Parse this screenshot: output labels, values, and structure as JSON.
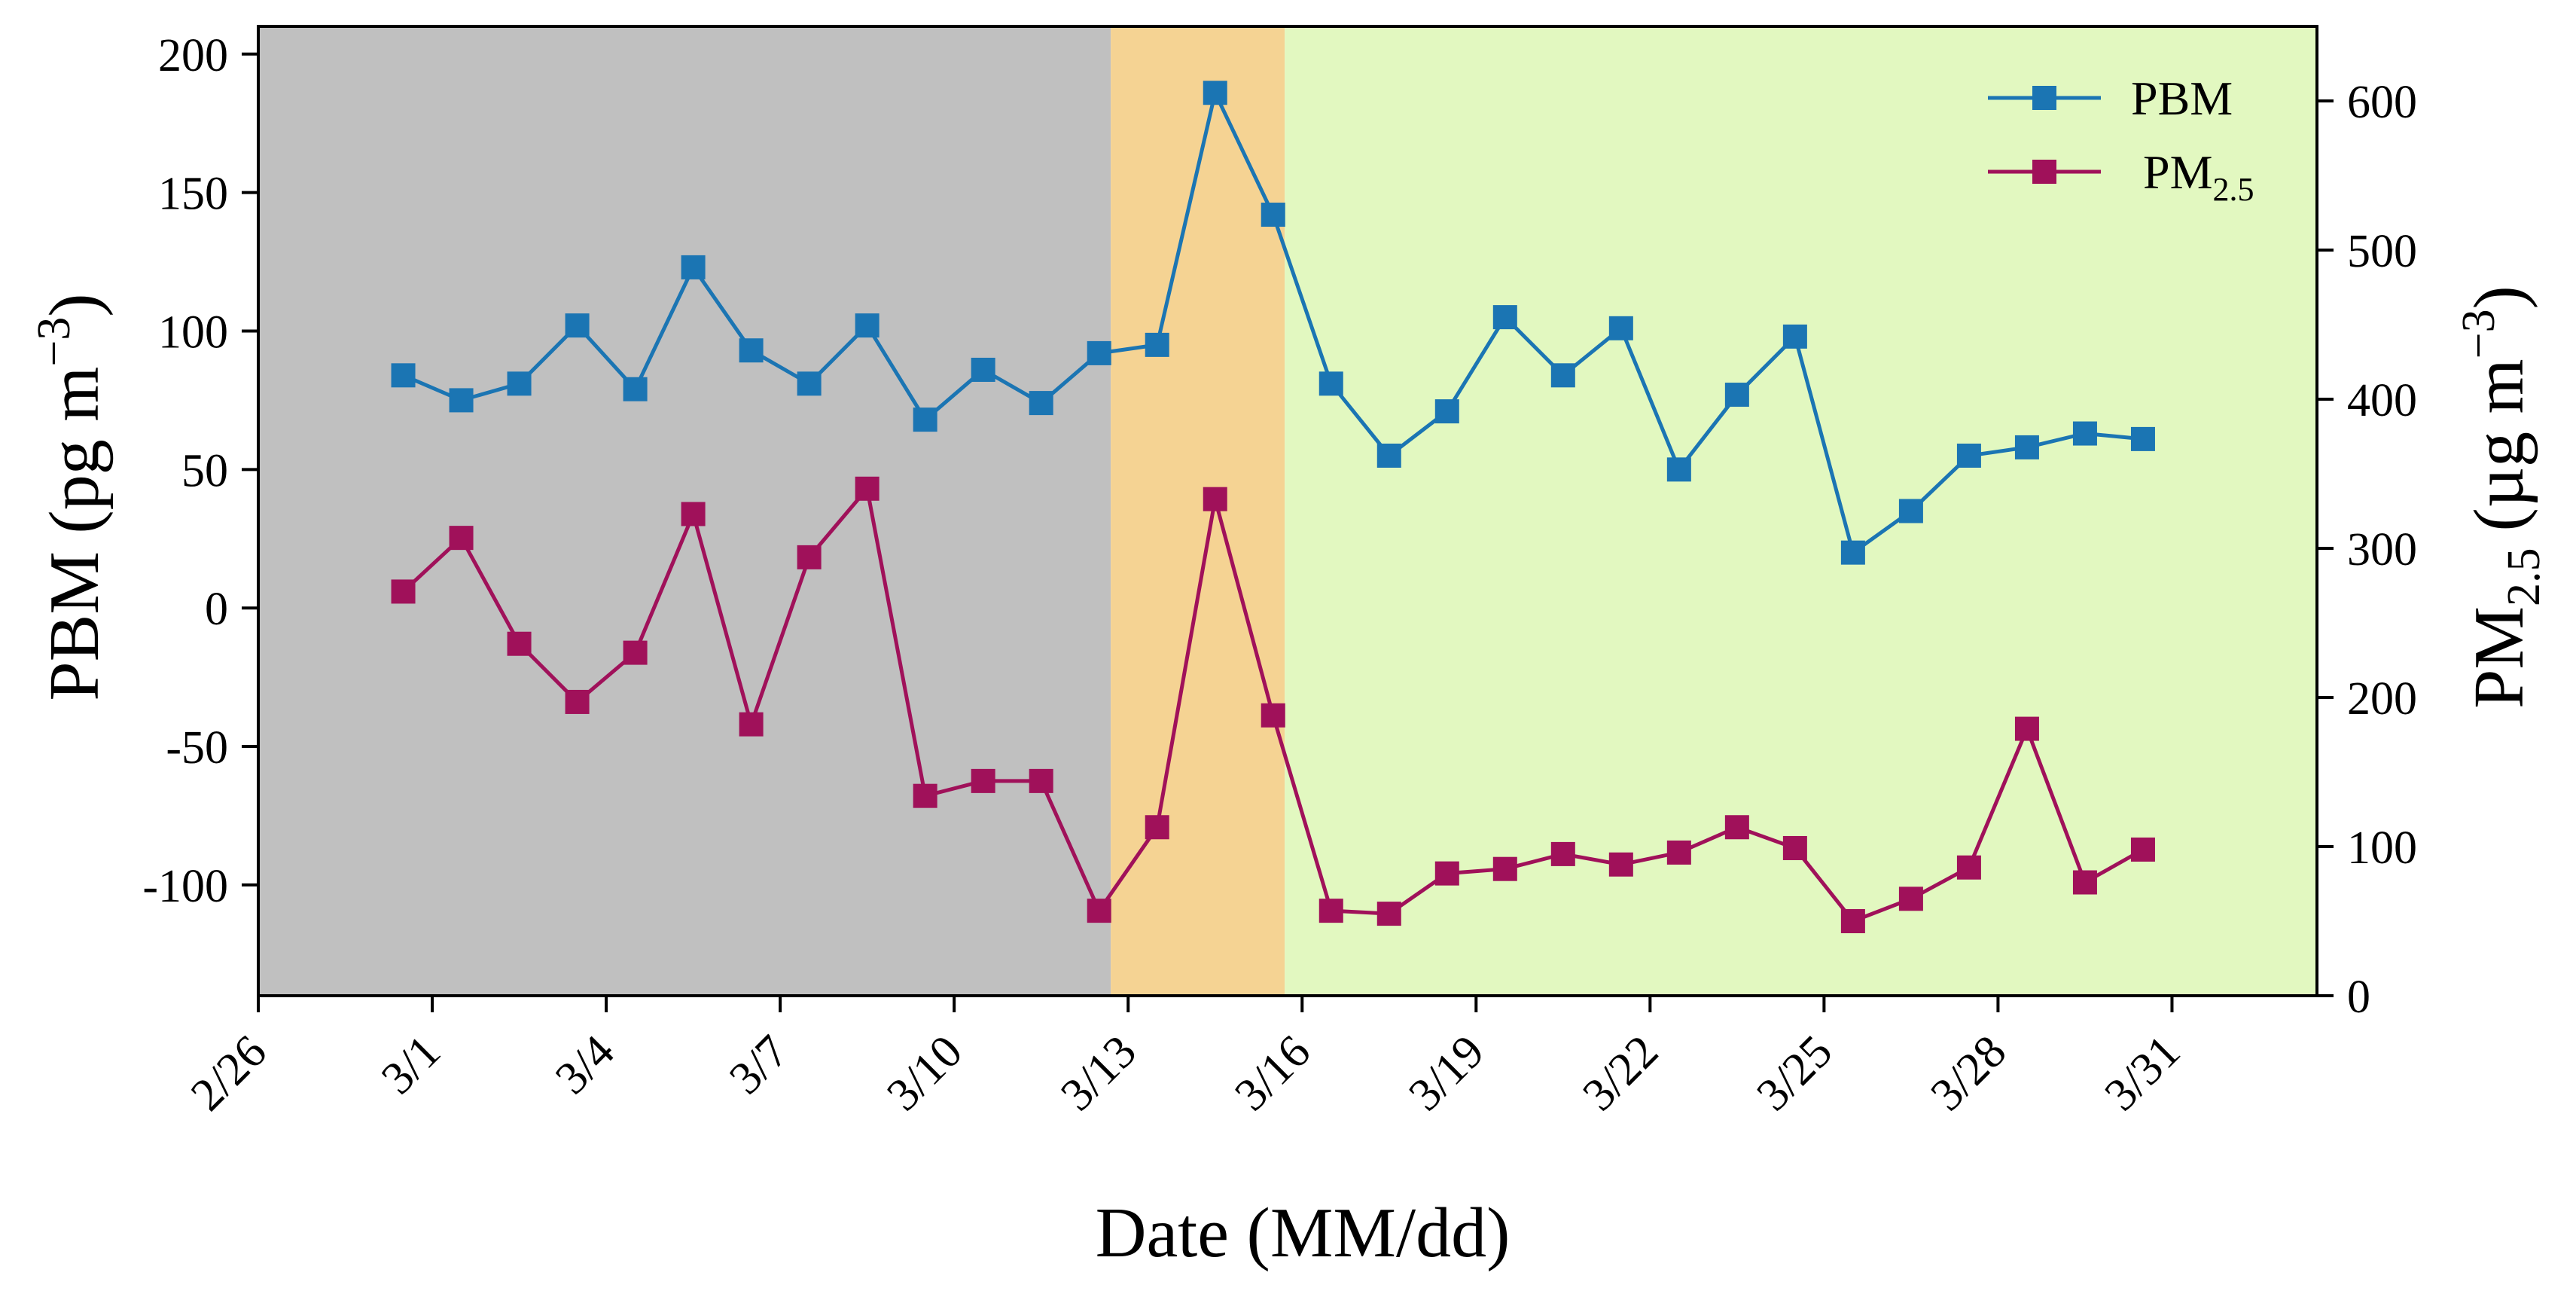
{
  "chart_data": {
    "type": "line",
    "x_label": "Date (MM/dd)",
    "y_left_label": "PBM (pg m",
    "y_left_label_sup": "−3",
    "y_left_label_close": ")",
    "y_right_label": "PM",
    "y_right_label_sub": "2.5",
    "y_right_label_units": "(µg m",
    "y_right_label_sup": "−3",
    "y_right_label_close": ")",
    "x_ticks": [
      "2/26",
      "3/1",
      "3/4",
      "3/7",
      "3/10",
      "3/13",
      "3/16",
      "3/19",
      "3/22",
      "3/25",
      "3/28",
      "3/31"
    ],
    "x_ticks_day": [
      0,
      3,
      6,
      9,
      12,
      15,
      18,
      21,
      24,
      27,
      30,
      33
    ],
    "x_range": [
      0,
      35.5
    ],
    "y_left_range": [
      -140,
      210
    ],
    "y_left_ticks": [
      200,
      150,
      100,
      50,
      0,
      -50,
      -100
    ],
    "y_left_tick_labels": [
      "200",
      "150",
      "100",
      "50",
      "0",
      "-50",
      "-100"
    ],
    "y_right_range": [
      0,
      650
    ],
    "y_right_ticks": [
      600,
      500,
      400,
      300,
      200,
      100,
      0
    ],
    "y_right_tick_labels": [
      "600",
      "500",
      "400",
      "300",
      "200",
      "100",
      "0"
    ],
    "periods": [
      {
        "start": 0,
        "end": 14.7,
        "color": "#c0c0c0"
      },
      {
        "start": 14.7,
        "end": 17.7,
        "color": "#f5d393"
      },
      {
        "start": 17.7,
        "end": 35.5,
        "color": "#e2f8c0"
      }
    ],
    "series": [
      {
        "name": "PBM",
        "axis": "left",
        "color": "#1b75b3",
        "x": [
          2.5,
          3.5,
          4.5,
          5.5,
          6.5,
          7.5,
          8.5,
          9.5,
          10.5,
          11.5,
          12.5,
          13.5,
          14.5,
          15.5,
          16.5,
          17.5,
          18.5,
          19.5,
          20.5,
          21.5,
          22.5,
          23.5,
          24.5,
          25.5,
          26.5,
          27.5,
          28.5,
          29.5,
          30.5,
          31.5,
          32.5
        ],
        "values": [
          84,
          75,
          81,
          102,
          79,
          123,
          93,
          81,
          102,
          68,
          86,
          74,
          92,
          95,
          186,
          142,
          81,
          55,
          71,
          105,
          84,
          101,
          50,
          77,
          98,
          20,
          35,
          55,
          58,
          63,
          61
        ]
      },
      {
        "name": "PM2.5",
        "axis": "right",
        "color": "#a0115a",
        "x": [
          2.5,
          3.5,
          4.5,
          5.5,
          6.5,
          7.5,
          8.5,
          9.5,
          10.5,
          11.5,
          12.5,
          13.5,
          14.5,
          15.5,
          16.5,
          17.5,
          18.5,
          19.5,
          20.5,
          21.5,
          22.5,
          23.5,
          24.5,
          25.5,
          26.5,
          27.5,
          28.5,
          29.5,
          30.5,
          31.5,
          32.5
        ],
        "values": [
          271,
          307,
          236,
          197,
          230,
          323,
          182,
          294,
          340,
          134,
          144,
          144,
          57,
          113,
          333,
          188,
          57,
          55,
          82,
          85,
          95,
          88,
          96,
          113,
          99,
          50,
          65,
          86,
          179,
          76,
          98
        ]
      }
    ],
    "legend": [
      {
        "label": "PBM",
        "sub": ""
      },
      {
        "label": "PM",
        "sub": "2.5"
      }
    ],
    "legend_position": "top-right"
  }
}
